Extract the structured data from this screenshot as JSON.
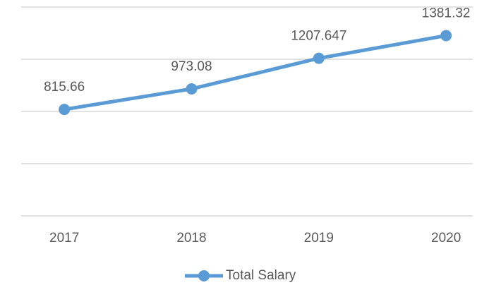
{
  "chart_data": {
    "type": "line",
    "categories": [
      "2017",
      "2018",
      "2019",
      "2020"
    ],
    "series": [
      {
        "name": "Total Salary",
        "color": "#5b9bd5",
        "values": [
          815.66,
          973.08,
          1207.647,
          1381.32
        ]
      }
    ],
    "ylim": [
      0,
      1600
    ],
    "yticks": [
      0,
      400,
      800,
      1200,
      1600
    ],
    "grid": true,
    "legend": "bottom"
  }
}
